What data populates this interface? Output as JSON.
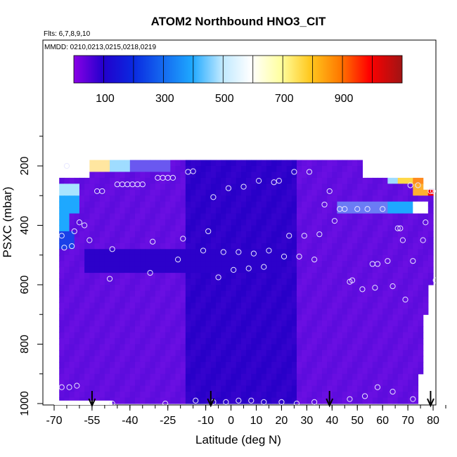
{
  "chart_data": {
    "type": "heatmap",
    "title": "ATOM2 Northbound HNO3_CIT",
    "flights_label": "Flts: 6,7,8,9,10",
    "dates_label": "MMDD: 0210,0213,0215,0218,0219",
    "xlabel": "Latitude (deg N)",
    "ylabel": "PSXC (mbar)",
    "xlim": [
      -70,
      85
    ],
    "ylim": [
      1000,
      60
    ],
    "x_ticks": [
      -70,
      -55,
      -40,
      -25,
      -10,
      0,
      10,
      20,
      30,
      40,
      50,
      60,
      70,
      80
    ],
    "y_ticks": [
      200,
      400,
      600,
      800,
      1000
    ],
    "colorbar": {
      "range": [
        0,
        1100
      ],
      "ticks": [
        100,
        300,
        500,
        700,
        900
      ],
      "colors": [
        "#8a00e6",
        "#2200cc",
        "#0a28e0",
        "#1ea8ff",
        "#e8f8ff",
        "#ffffc8",
        "#ffd21e",
        "#ff8a00",
        "#ff0000",
        "#a01414"
      ]
    },
    "arrows_lat": [
      -55,
      -8,
      39,
      79
    ],
    "points": [
      [
        -65,
        200
      ],
      [
        -67,
        435
      ],
      [
        -66,
        475
      ],
      [
        -63,
        470
      ],
      [
        -62,
        420
      ],
      [
        -60,
        390
      ],
      [
        -58,
        400
      ],
      [
        -56,
        450
      ],
      [
        -53,
        285
      ],
      [
        -51,
        285
      ],
      [
        -48,
        580
      ],
      [
        -47,
        480
      ],
      [
        -45,
        262
      ],
      [
        -43,
        262
      ],
      [
        -41,
        262
      ],
      [
        -39,
        262
      ],
      [
        -37,
        262
      ],
      [
        -35,
        262
      ],
      [
        -32,
        560
      ],
      [
        -31,
        455
      ],
      [
        -29,
        240
      ],
      [
        -27,
        240
      ],
      [
        -25,
        240
      ],
      [
        -23,
        240
      ],
      [
        -21,
        515
      ],
      [
        -19,
        445
      ],
      [
        -17,
        220
      ],
      [
        -15,
        218
      ],
      [
        -11,
        485
      ],
      [
        -9,
        420
      ],
      [
        -7,
        305
      ],
      [
        -5,
        575
      ],
      [
        -3,
        490
      ],
      [
        -1,
        275
      ],
      [
        1,
        550
      ],
      [
        3,
        490
      ],
      [
        5,
        270
      ],
      [
        7,
        545
      ],
      [
        9,
        495
      ],
      [
        11,
        250
      ],
      [
        13,
        540
      ],
      [
        15,
        485
      ],
      [
        17,
        255
      ],
      [
        19,
        250
      ],
      [
        21,
        505
      ],
      [
        23,
        435
      ],
      [
        25,
        220
      ],
      [
        27,
        505
      ],
      [
        29,
        435
      ],
      [
        31,
        220
      ],
      [
        33,
        515
      ],
      [
        35,
        430
      ],
      [
        37,
        330
      ],
      [
        39,
        285
      ],
      [
        41,
        385
      ],
      [
        43,
        345
      ],
      [
        45,
        345
      ],
      [
        47,
        590
      ],
      [
        48,
        585
      ],
      [
        50,
        345
      ],
      [
        52,
        615
      ],
      [
        54,
        345
      ],
      [
        56,
        530
      ],
      [
        57,
        610
      ],
      [
        58,
        530
      ],
      [
        60,
        345
      ],
      [
        62,
        520
      ],
      [
        64,
        605
      ],
      [
        66,
        410
      ],
      [
        67,
        410
      ],
      [
        68,
        450
      ],
      [
        69,
        650
      ],
      [
        71,
        265
      ],
      [
        72,
        520
      ],
      [
        74,
        265
      ],
      [
        76,
        450
      ],
      [
        77,
        390
      ],
      [
        79,
        285
      ],
      [
        80,
        285
      ],
      [
        81,
        585
      ],
      [
        -67,
        945
      ],
      [
        -64,
        945
      ],
      [
        -61,
        940
      ],
      [
        -47,
        1000
      ],
      [
        -26,
        1000
      ],
      [
        -14,
        990
      ],
      [
        -7,
        995
      ],
      [
        -2,
        995
      ],
      [
        3,
        990
      ],
      [
        8,
        990
      ],
      [
        13,
        995
      ],
      [
        20,
        995
      ],
      [
        26,
        1000
      ],
      [
        33,
        995
      ],
      [
        47,
        985
      ],
      [
        53,
        975
      ],
      [
        58,
        945
      ],
      [
        64,
        960
      ],
      [
        72,
        985
      ]
    ]
  }
}
